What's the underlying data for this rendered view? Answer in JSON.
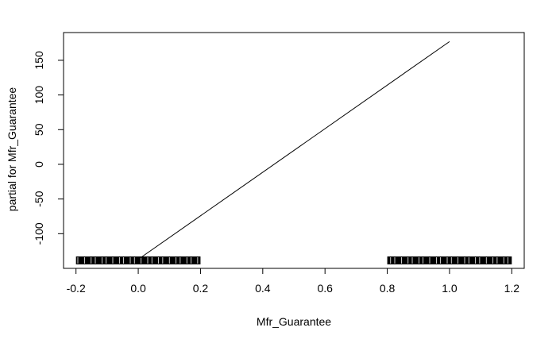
{
  "chart_data": {
    "type": "line",
    "xlabel": "Mfr_Guarantee",
    "ylabel": "partial for Mfr_Guarantee",
    "xlim": [
      -0.24,
      1.24
    ],
    "ylim": [
      -150,
      190
    ],
    "x_ticks": [
      -0.2,
      0.0,
      0.2,
      0.4,
      0.6,
      0.8,
      1.0,
      1.2
    ],
    "x_tick_labels": [
      "-0.2",
      "0.0",
      "0.2",
      "0.4",
      "0.6",
      "0.8",
      "1.0",
      "1.2"
    ],
    "y_ticks": [
      -100,
      -50,
      0,
      50,
      100,
      150
    ],
    "y_tick_labels": [
      "-100",
      "-50",
      "0",
      "50",
      "100",
      "150"
    ],
    "grid": false,
    "series": [
      {
        "x": [
          0.0,
          1.0
        ],
        "y": [
          -137,
          177
        ]
      }
    ],
    "rug": {
      "left_range": [
        -0.2,
        0.2
      ],
      "right_range": [
        0.8,
        1.2
      ],
      "color": "#000000"
    }
  }
}
